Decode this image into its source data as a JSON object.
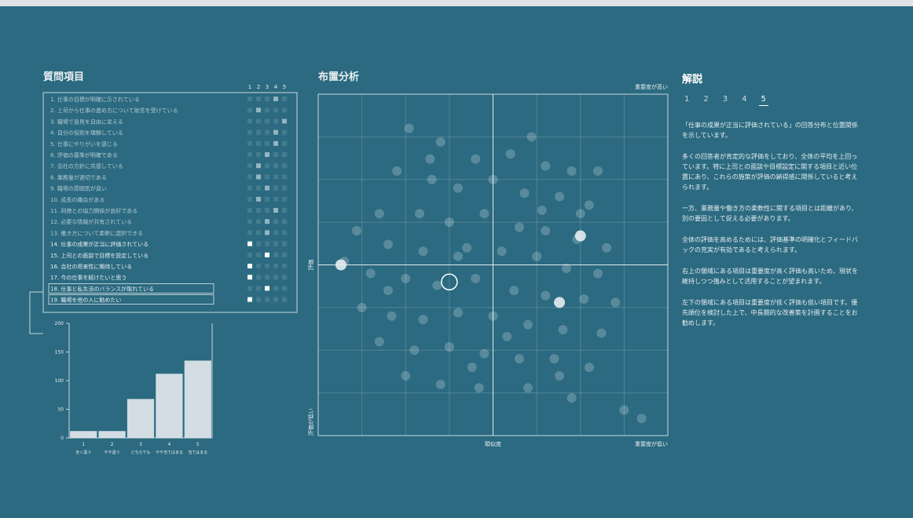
{
  "panels": {
    "questions_title": "質問項目",
    "scatter_title": "布置分析",
    "commentary_title": "解説"
  },
  "questions": {
    "column_headers": [
      "1",
      "2",
      "3",
      "4",
      "5"
    ],
    "rows": [
      {
        "label": "1. 仕事の目標が明確に示されている",
        "selected": 3
      },
      {
        "label": "2. 上司から仕事の進め方について助言を受けている",
        "selected": 1
      },
      {
        "label": "3. 職場で意見を自由に言える",
        "selected": 4
      },
      {
        "label": "4. 自分の役割を理解している",
        "selected": 3
      },
      {
        "label": "5. 仕事にやりがいを感じる",
        "selected": 3
      },
      {
        "label": "6. 評価の基準が明確である",
        "selected": 2
      },
      {
        "label": "7. 会社の方針に共感している",
        "selected": 1
      },
      {
        "label": "8. 業務量が適切である",
        "selected": 1
      },
      {
        "label": "9. 職場の雰囲気が良い",
        "selected": 2
      },
      {
        "label": "10. 成長の機会がある",
        "selected": 1
      },
      {
        "label": "11. 同僚との協力関係が良好である",
        "selected": 3
      },
      {
        "label": "12. 必要な情報が共有されている",
        "selected": 2
      },
      {
        "label": "13. 働き方について柔軟に選択できる",
        "selected": 2
      },
      {
        "label": "14. 仕事の成果が正当に評価されている",
        "selected": 0
      },
      {
        "label": "15. 上司との面談で目標を設定している",
        "selected": 2
      },
      {
        "label": "16. 会社の将来性に期待している",
        "selected": 0
      },
      {
        "label": "17. 今の仕事を続けたいと思う",
        "selected": 0
      },
      {
        "label": "18. 仕事と私生活のバランスが取れている",
        "selected": 2
      },
      {
        "label": "19. 職場を他の人に勧めたい",
        "selected": 0
      }
    ]
  },
  "chart_data": [
    {
      "type": "bar",
      "categories": [
        "1",
        "2",
        "3",
        "4",
        "5"
      ],
      "category_notes": [
        "全く違う",
        "やや違う",
        "どちらでも",
        "やや当てはまる",
        "当てはまる"
      ],
      "values": [
        12,
        12,
        68,
        112,
        135
      ],
      "color": "#d3dde3",
      "ylim": [
        0,
        200
      ],
      "yticks": [
        0,
        50,
        100,
        150,
        200
      ]
    },
    {
      "type": "scatter",
      "x_label": "類似度",
      "y_label": "評価",
      "top_right_label": "重要度が高い",
      "bottom_right_label": "重要度が低い",
      "bottom_left_label": "評価が低い",
      "xlim": [
        -1,
        1
      ],
      "ylim": [
        -1,
        1
      ],
      "series": [
        {
          "color": "#ffffff",
          "x": [
            -0.48,
            -0.3,
            -0.1,
            0.1,
            0.3,
            0.45,
            -0.55,
            -0.35,
            -0.2,
            0.0,
            0.18,
            0.38,
            0.55,
            -0.65,
            -0.42,
            -0.25,
            -0.05,
            0.15,
            0.3,
            0.48,
            0.65,
            -0.78,
            -0.6,
            -0.4,
            -0.15,
            0.05,
            0.25,
            0.42,
            0.6,
            -0.85,
            -0.7,
            -0.5,
            -0.32,
            -0.1,
            0.12,
            0.3,
            0.52,
            0.7,
            -0.75,
            -0.58,
            -0.4,
            -0.2,
            0.0,
            0.2,
            0.4,
            0.62,
            -0.65,
            -0.45,
            -0.25,
            -0.05,
            0.15,
            0.35,
            0.55,
            -0.5,
            -0.3,
            -0.08,
            0.2,
            0.45,
            0.75,
            -0.2,
            0.08,
            0.28,
            -0.36,
            0.22,
            0.6,
            -0.12,
            0.5,
            -0.6,
            0.38,
            0.85
          ],
          "values": [
            0.8,
            0.72,
            0.62,
            0.65,
            0.58,
            0.55,
            0.55,
            0.5,
            0.45,
            0.5,
            0.42,
            0.4,
            0.35,
            0.3,
            0.3,
            0.25,
            0.3,
            0.22,
            0.2,
            0.15,
            0.1,
            0.2,
            0.12,
            0.08,
            0.1,
            0.08,
            0.05,
            -0.02,
            -0.05,
            0.02,
            -0.05,
            -0.08,
            -0.12,
            -0.08,
            -0.15,
            -0.18,
            -0.2,
            -0.22,
            -0.25,
            -0.3,
            -0.32,
            -0.28,
            -0.3,
            -0.35,
            -0.38,
            -0.4,
            -0.45,
            -0.5,
            -0.48,
            -0.52,
            -0.55,
            -0.55,
            -0.6,
            -0.65,
            -0.7,
            -0.72,
            -0.72,
            -0.78,
            -0.85,
            0.05,
            -0.42,
            0.32,
            0.62,
            0.75,
            0.55,
            -0.6,
            0.3,
            -0.15,
            -0.65,
            -0.9
          ]
        },
        {
          "color": "#e6edf0",
          "x": [
            -0.87,
            0.5,
            0.38
          ],
          "values": [
            0.0,
            0.17,
            -0.22
          ]
        }
      ],
      "selected": {
        "x": -0.25,
        "y": -0.1
      }
    }
  ],
  "commentary": {
    "tabs": [
      "1",
      "2",
      "3",
      "4",
      "5"
    ],
    "active_tab": 4,
    "paragraphs": [
      "「仕事の成果が正当に評価されている」の回答分布と位置関係を示しています。",
      "多くの回答者が肯定的な評価をしており、全体の平均を上回っています。特に上司との面談や目標設定に関する項目と近い位置にあり、これらの施策が評価の納得感に関係していると考えられます。",
      "一方、業務量や働き方の柔軟性に関する項目とは距離があり、別の要因として捉える必要があります。",
      "全体の評価を高めるためには、評価基準の明確化とフィードバックの充実が有効であると考えられます。",
      "右上の領域にある項目は重要度が高く評価も高いため、現状を維持しつつ強みとして活用することが望まれます。",
      "左下の領域にある項目は重要度が低く評価も低い項目です。優先順位を検討した上で、中長期的な改善策を計画することをお勧めします。"
    ]
  }
}
